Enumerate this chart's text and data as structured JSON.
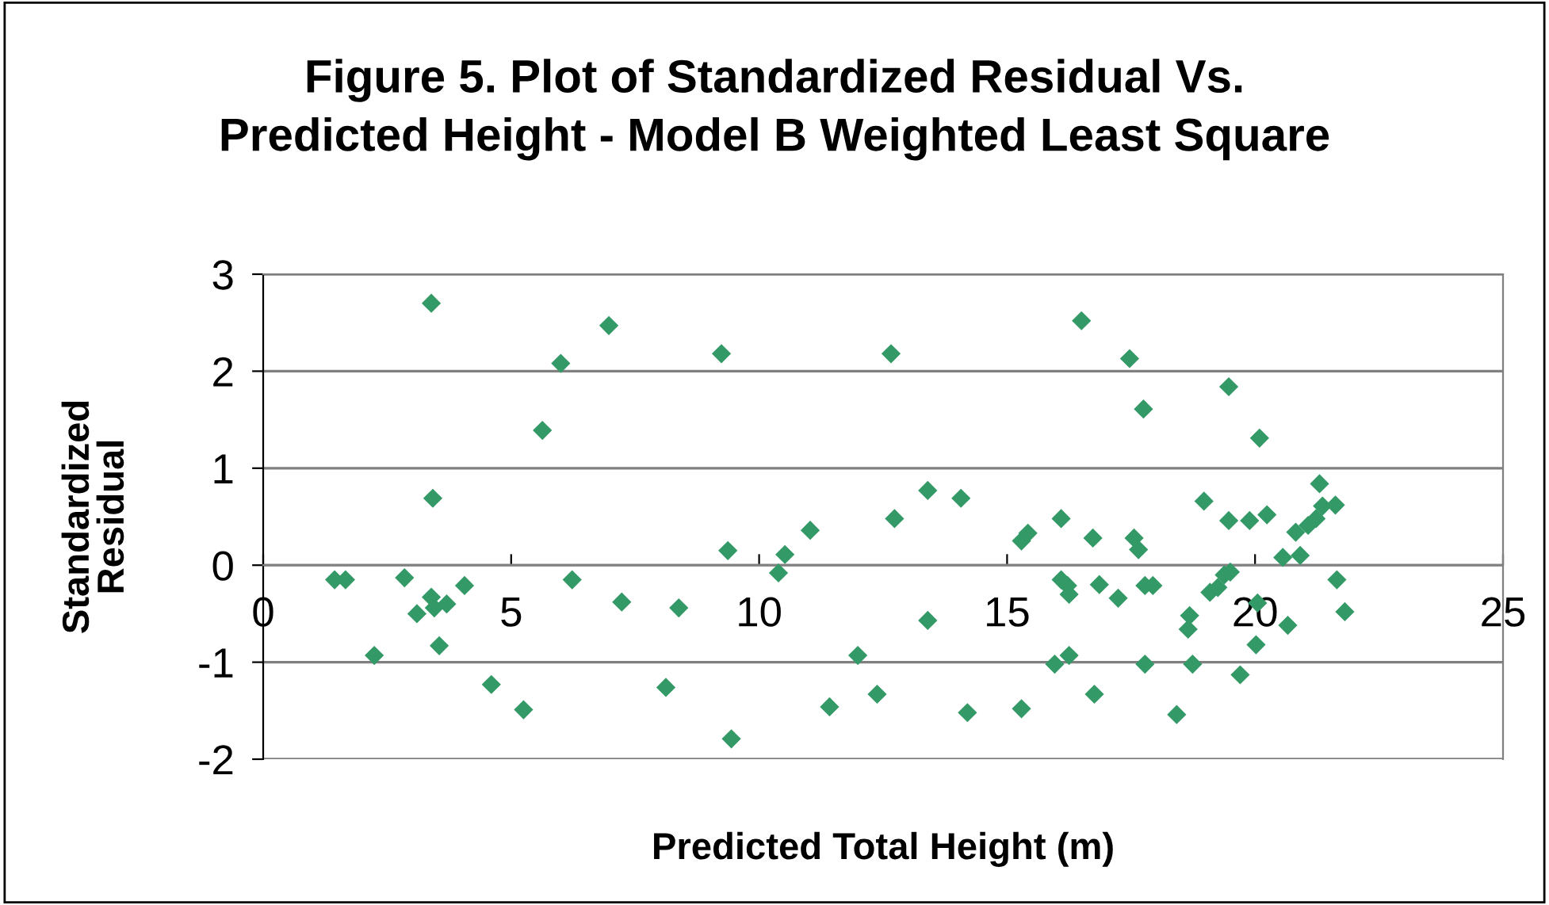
{
  "chart_data": {
    "type": "scatter",
    "title": "Figure 5. Plot of Standardized Residual Vs.\nPredicted Height - Model B Weighted Least Square",
    "xlabel": "Predicted Total Height (m)",
    "ylabel": "Standardized\nResidual",
    "marker": "diamond",
    "grid": "y",
    "xlim": [
      0,
      25
    ],
    "xticks": [
      0,
      5,
      10,
      15,
      20,
      25
    ],
    "ylim": [
      -2,
      3
    ],
    "yticks": [
      -2,
      -1,
      0,
      1,
      2,
      3
    ],
    "series": [
      {
        "color": "#339966",
        "x": [
          1.44,
          1.66,
          2.24,
          2.85,
          3.1,
          3.39,
          3.39,
          3.42,
          3.45,
          3.55,
          3.7,
          4.06,
          4.6,
          5.25,
          5.63,
          6.0,
          6.23,
          6.97,
          7.23,
          8.38,
          8.12,
          9.24,
          9.37,
          9.44,
          10.39,
          10.52,
          11.03,
          11.99,
          11.42,
          12.38,
          12.66,
          12.73,
          13.4,
          13.4,
          14.07,
          14.2,
          15.29,
          15.42,
          15.29,
          16.09,
          16.09,
          16.22,
          16.25,
          15.96,
          16.25,
          16.5,
          16.73,
          16.76,
          16.86,
          17.24,
          17.47,
          17.56,
          17.65,
          17.75,
          17.78,
          17.94,
          17.78,
          18.42,
          18.68,
          18.65,
          18.74,
          18.97,
          19.09,
          19.25,
          19.38,
          19.5,
          19.47,
          19.47,
          19.7,
          19.89,
          20.02,
          20.05,
          20.09,
          20.24,
          20.56,
          20.66,
          20.82,
          20.91,
          21.07,
          21.23,
          21.36,
          21.3,
          21.62,
          21.65,
          21.81
        ],
        "values": [
          -0.15,
          -0.15,
          -0.93,
          -0.13,
          -0.5,
          2.7,
          -0.33,
          0.69,
          -0.44,
          -0.83,
          -0.4,
          -0.21,
          -1.23,
          -1.49,
          1.39,
          2.08,
          -0.15,
          2.47,
          -0.38,
          -0.44,
          -1.26,
          2.18,
          0.15,
          -1.79,
          -0.08,
          0.11,
          0.36,
          -0.93,
          -1.46,
          -1.33,
          2.18,
          0.48,
          0.77,
          -0.57,
          0.69,
          -1.52,
          0.25,
          0.33,
          -1.48,
          0.48,
          -0.15,
          -0.21,
          -0.3,
          -1.02,
          -0.93,
          2.52,
          0.28,
          -1.33,
          -0.2,
          -0.34,
          2.13,
          0.28,
          0.16,
          1.61,
          -0.21,
          -0.21,
          -1.02,
          -1.54,
          -0.52,
          -0.66,
          -1.02,
          0.66,
          -0.28,
          -0.23,
          -0.1,
          -0.07,
          1.84,
          0.46,
          -1.13,
          0.46,
          -0.82,
          -0.39,
          1.31,
          0.52,
          0.08,
          -0.62,
          0.34,
          0.1,
          0.41,
          0.48,
          0.61,
          0.84,
          0.62,
          -0.15,
          -0.48
        ]
      }
    ]
  }
}
